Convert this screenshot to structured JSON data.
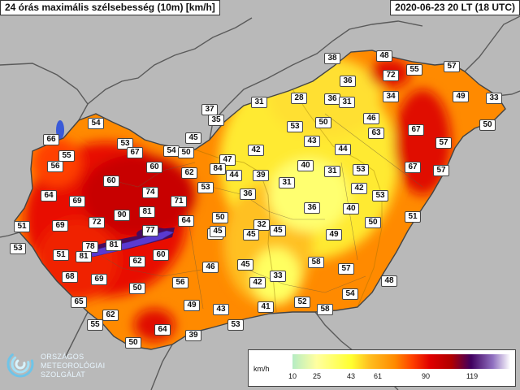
{
  "header": {
    "title": "24 órás maximális szélsebesség (10m) [km/h]",
    "datetime": "2020-06-23 20 LT (18 UTC)"
  },
  "logo": {
    "line1": "ORSZÁGOS",
    "line2": "METEOROLÓGIAI",
    "line3": "SZOLGÁLAT"
  },
  "legend": {
    "unit": "km/h",
    "ticks": [
      "10",
      "25",
      "43",
      "61",
      "90",
      "119"
    ]
  },
  "colors": {
    "background": "#b9b9b9",
    "wind_10": "#b5ecc4",
    "wind_25": "#ffff30",
    "wind_43": "#ffa000",
    "wind_61": "#ff4000",
    "wind_90": "#c00000",
    "wind_119": "#400060"
  },
  "stations": [
    {
      "value": "38"
    },
    {
      "value": "48"
    },
    {
      "value": "57"
    },
    {
      "value": "72"
    },
    {
      "value": "55"
    },
    {
      "value": "36"
    },
    {
      "value": "49"
    },
    {
      "value": "33"
    },
    {
      "value": "28"
    },
    {
      "value": "36"
    },
    {
      "value": "31"
    },
    {
      "value": "34"
    },
    {
      "value": "31"
    },
    {
      "value": "37"
    },
    {
      "value": "35"
    },
    {
      "value": "46"
    },
    {
      "value": "53"
    },
    {
      "value": "50"
    },
    {
      "value": "63"
    },
    {
      "value": "67"
    },
    {
      "value": "50"
    },
    {
      "value": "54"
    },
    {
      "value": "66"
    },
    {
      "value": "55"
    },
    {
      "value": "53"
    },
    {
      "value": "67"
    },
    {
      "value": "45"
    },
    {
      "value": "43"
    },
    {
      "value": "57"
    },
    {
      "value": "42"
    },
    {
      "value": "54"
    },
    {
      "value": "50"
    },
    {
      "value": "44"
    },
    {
      "value": "56"
    },
    {
      "value": "60"
    },
    {
      "value": "47"
    },
    {
      "value": "84"
    },
    {
      "value": "44"
    },
    {
      "value": "62"
    },
    {
      "value": "39"
    },
    {
      "value": "40"
    },
    {
      "value": "31"
    },
    {
      "value": "53"
    },
    {
      "value": "67"
    },
    {
      "value": "57"
    },
    {
      "value": "60"
    },
    {
      "value": "31"
    },
    {
      "value": "64"
    },
    {
      "value": "74"
    },
    {
      "value": "53"
    },
    {
      "value": "36"
    },
    {
      "value": "42"
    },
    {
      "value": "53"
    },
    {
      "value": "69"
    },
    {
      "value": "71"
    },
    {
      "value": "90"
    },
    {
      "value": "81"
    },
    {
      "value": "72"
    },
    {
      "value": "36"
    },
    {
      "value": "40"
    },
    {
      "value": "64"
    },
    {
      "value": "50"
    },
    {
      "value": "51"
    },
    {
      "value": "69"
    },
    {
      "value": "32"
    },
    {
      "value": "45"
    },
    {
      "value": "50"
    },
    {
      "value": "51"
    },
    {
      "value": "77"
    },
    {
      "value": "58"
    },
    {
      "value": "45"
    },
    {
      "value": "45"
    },
    {
      "value": "49"
    },
    {
      "value": "78"
    },
    {
      "value": "81"
    },
    {
      "value": "53"
    },
    {
      "value": "60"
    },
    {
      "value": "51"
    },
    {
      "value": "81"
    },
    {
      "value": "62"
    },
    {
      "value": "46"
    },
    {
      "value": "45"
    },
    {
      "value": "58"
    },
    {
      "value": "57"
    },
    {
      "value": "68"
    },
    {
      "value": "69"
    },
    {
      "value": "33"
    },
    {
      "value": "48"
    },
    {
      "value": "56"
    },
    {
      "value": "42"
    },
    {
      "value": "50"
    },
    {
      "value": "54"
    },
    {
      "value": "65"
    },
    {
      "value": "49"
    },
    {
      "value": "43"
    },
    {
      "value": "41"
    },
    {
      "value": "52"
    },
    {
      "value": "58"
    },
    {
      "value": "62"
    },
    {
      "value": "55"
    },
    {
      "value": "64"
    },
    {
      "value": "53"
    },
    {
      "value": "39"
    },
    {
      "value": "50"
    }
  ]
}
